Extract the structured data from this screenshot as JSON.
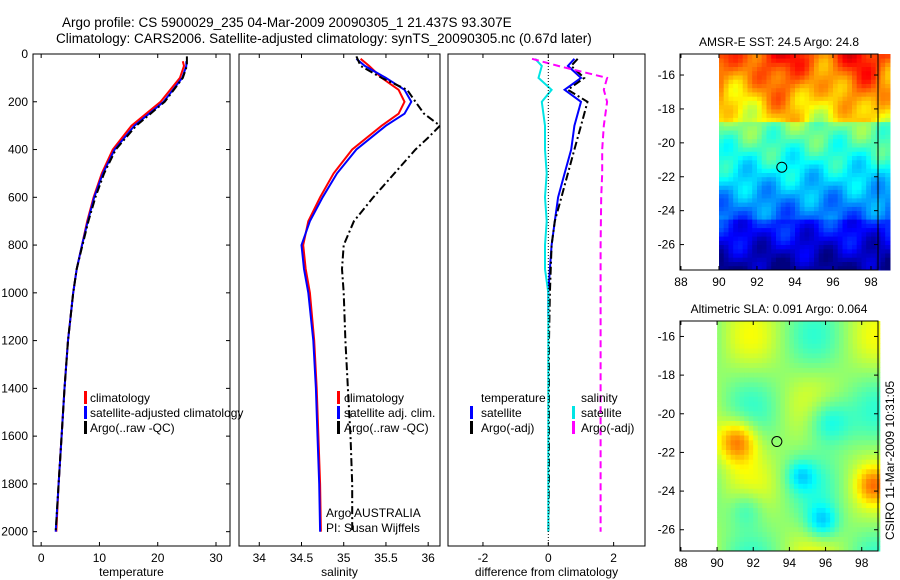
{
  "title": {
    "line1": "Argo profile: CS 5900029_235 04-Mar-2009 20090305_1 21.437S 93.307E",
    "line2": "Climatology: CARS2006. Satellite-adjusted climatology: synTS_20090305.nc (0.67d later)"
  },
  "side_label": "CSIRO 11-Mar-2009 10:31:05",
  "colors": {
    "clim": "#ff0000",
    "sat": "#0000ff",
    "argo": "#000000",
    "sal_sat": "#00e5e5",
    "sal_argo": "#ff00ff"
  },
  "chart_data": [
    {
      "type": "line",
      "xlabel": "temperature",
      "ylabel": "",
      "xlim": [
        -1.4,
        32.4
      ],
      "ylim": [
        0,
        2060
      ],
      "yreverse": true,
      "xticks": [
        0,
        10,
        20,
        30
      ],
      "yticks": [
        0,
        200,
        400,
        600,
        800,
        1000,
        1200,
        1400,
        1600,
        1800,
        2000
      ],
      "legend": [
        "climatology",
        "satellite-adjusted climatology",
        "Argo(..raw -QC)"
      ],
      "series": [
        {
          "name": "climatology",
          "color": "#ff0000",
          "style": "solid",
          "depth": [
            30,
            50,
            100,
            200,
            300,
            400,
            500,
            600,
            700,
            800,
            900,
            1000,
            1200,
            1400,
            1600,
            1800,
            2000
          ],
          "values": [
            24.3,
            24.5,
            23.8,
            20.5,
            15.5,
            12.3,
            10.4,
            9.0,
            7.9,
            7.0,
            6.1,
            5.5,
            4.6,
            4.0,
            3.5,
            3.0,
            2.6
          ]
        },
        {
          "name": "satellite-adjusted climatology",
          "color": "#0000ff",
          "style": "solid",
          "depth": [
            30,
            50,
            100,
            200,
            300,
            400,
            500,
            600,
            700,
            800,
            900,
            1000,
            1200,
            1400,
            1600,
            1800,
            2000
          ],
          "values": [
            24.9,
            24.9,
            24.2,
            21.0,
            16.0,
            12.6,
            10.6,
            9.1,
            8.0,
            7.0,
            6.1,
            5.5,
            4.6,
            4.0,
            3.5,
            3.0,
            2.5
          ]
        },
        {
          "name": "Argo(..raw -QC)",
          "color": "#000000",
          "style": "dashdot",
          "depth": [
            10,
            50,
            100,
            200,
            300,
            400,
            500,
            600,
            700,
            800,
            900,
            1000,
            1200,
            1400,
            1600,
            1800,
            2000
          ],
          "values": [
            25.0,
            25.0,
            24.3,
            21.2,
            16.3,
            12.8,
            10.8,
            9.3,
            8.1,
            7.1,
            6.1,
            5.5,
            4.6,
            4.0,
            3.5,
            3.0,
            2.5
          ]
        }
      ]
    },
    {
      "type": "line",
      "xlabel": "salinity",
      "xlim": [
        33.76,
        36.14
      ],
      "ylim": [
        0,
        2060
      ],
      "yreverse": true,
      "xticks": [
        34,
        34.5,
        35,
        35.5,
        36
      ],
      "xticklabels": [
        "34",
        "34.5",
        "35",
        "35.5",
        "36"
      ],
      "legend": [
        "climatology",
        "satellite adj. clim.",
        "Argo(..raw -QC)"
      ],
      "annotation": [
        "Argo AUSTRALIA",
        "PI: Susan Wijffels"
      ],
      "series": [
        {
          "name": "climatology",
          "color": "#ff0000",
          "style": "solid",
          "depth": [
            20,
            50,
            100,
            150,
            200,
            250,
            300,
            400,
            500,
            600,
            700,
            800,
            900,
            1000,
            1200,
            1400,
            1600,
            1800,
            2000
          ],
          "values": [
            35.2,
            35.3,
            35.45,
            35.65,
            35.72,
            35.65,
            35.45,
            35.1,
            34.88,
            34.72,
            34.58,
            34.52,
            34.55,
            34.6,
            34.65,
            34.68,
            34.7,
            34.72,
            34.73
          ]
        },
        {
          "name": "satellite adj. clim.",
          "color": "#0000ff",
          "style": "solid",
          "depth": [
            20,
            50,
            100,
            150,
            200,
            250,
            300,
            400,
            500,
            600,
            700,
            800,
            900,
            1000,
            1200,
            1400,
            1600,
            1800,
            2000
          ],
          "values": [
            35.15,
            35.25,
            35.5,
            35.72,
            35.8,
            35.72,
            35.5,
            35.15,
            34.92,
            34.75,
            34.6,
            34.5,
            34.53,
            34.58,
            34.64,
            34.67,
            34.69,
            34.71,
            34.72
          ]
        },
        {
          "name": "Argo(..raw -QC)",
          "color": "#000000",
          "style": "dashdot",
          "depth": [
            10,
            50,
            100,
            150,
            200,
            250,
            300,
            350,
            400,
            500,
            600,
            700,
            800,
            900,
            1000,
            1200,
            1400,
            1600,
            1800,
            2000
          ],
          "values": [
            35.15,
            35.2,
            35.45,
            35.75,
            35.85,
            35.95,
            36.14,
            36.0,
            35.85,
            35.6,
            35.35,
            35.12,
            35.0,
            34.98,
            35.0,
            35.02,
            35.05,
            35.08,
            35.1,
            35.1
          ]
        }
      ]
    },
    {
      "type": "line",
      "xlabel": "difference from climatology",
      "xlim": [
        -3.07,
        2.96
      ],
      "ylim": [
        0,
        2060
      ],
      "yreverse": true,
      "xticks": [
        -2,
        0,
        2
      ],
      "legend_left": [
        "temperature",
        "satellite",
        "Argo(-adj)"
      ],
      "legend_right": [
        "salinity",
        "satellite",
        "Argo(-adj)"
      ],
      "series": [
        {
          "name": "temperature satellite",
          "color": "#0000ff",
          "style": "solid",
          "depth": [
            20,
            50,
            100,
            150,
            200,
            300,
            400,
            500,
            600,
            700,
            800,
            900,
            1000,
            1100
          ],
          "values": [
            0.8,
            0.6,
            1.0,
            0.5,
            1.0,
            0.8,
            0.7,
            0.5,
            0.3,
            0.2,
            0.1,
            0.05,
            0,
            0
          ]
        },
        {
          "name": "temperature Argo(-adj)",
          "color": "#000000",
          "style": "dashdot",
          "depth": [
            20,
            50,
            100,
            150,
            200,
            300,
            400,
            500,
            600,
            700,
            800,
            1000,
            1200,
            1400,
            1600,
            1800,
            2000
          ],
          "values": [
            0.9,
            0.7,
            1.1,
            0.6,
            1.2,
            1.0,
            0.8,
            0.6,
            0.4,
            0.2,
            0.1,
            0.05,
            0.02,
            0.02,
            0.02,
            0.02,
            0
          ]
        },
        {
          "name": "salinity satellite",
          "color": "#00e5e5",
          "style": "solid",
          "depth": [
            20,
            50,
            100,
            150,
            200,
            300,
            400,
            500,
            600,
            700,
            800,
            900,
            1000,
            1200,
            1600,
            2000
          ],
          "values": [
            -0.4,
            -0.2,
            -0.3,
            0.1,
            -0.2,
            -0.1,
            -0.1,
            -0.05,
            -0.1,
            -0.05,
            -0.1,
            -0.1,
            0,
            0,
            0,
            0
          ]
        },
        {
          "name": "salinity Argo(-adj)",
          "color": "#ff00ff",
          "style": "dash",
          "depth": [
            20,
            50,
            100,
            150,
            200,
            300,
            400,
            500,
            600,
            800,
            1000,
            1400,
            1800,
            2000
          ],
          "values": [
            -0.5,
            0.3,
            1.8,
            1.7,
            1.8,
            1.7,
            1.65,
            1.65,
            1.62,
            1.6,
            1.6,
            1.6,
            1.6,
            1.6
          ]
        }
      ]
    },
    {
      "type": "heatmap",
      "title": "AMSR-E SST: 24.5 Argo: 24.8",
      "xlim": [
        87.95,
        98.37
      ],
      "ylim": [
        -27.5,
        -14.76
      ],
      "xticks": [
        88,
        90,
        92,
        94,
        96,
        98
      ],
      "yticks": [
        -16,
        -18,
        -20,
        -22,
        -24,
        -26
      ],
      "data_lon_range": [
        90,
        98.9
      ],
      "argo_position": [
        93.307,
        -21.437
      ]
    },
    {
      "type": "heatmap",
      "title": "Altimetric SLA: 0.091 Argo: 0.064",
      "xlim": [
        87.95,
        98.9
      ],
      "ylim": [
        -27.1,
        -15.2
      ],
      "xticks": [
        88,
        90,
        92,
        94,
        96,
        98
      ],
      "yticks": [
        -16,
        -18,
        -20,
        -22,
        -24,
        -26
      ],
      "data_lon_range": [
        90,
        98.9
      ],
      "argo_position": [
        93.307,
        -21.437
      ]
    }
  ]
}
